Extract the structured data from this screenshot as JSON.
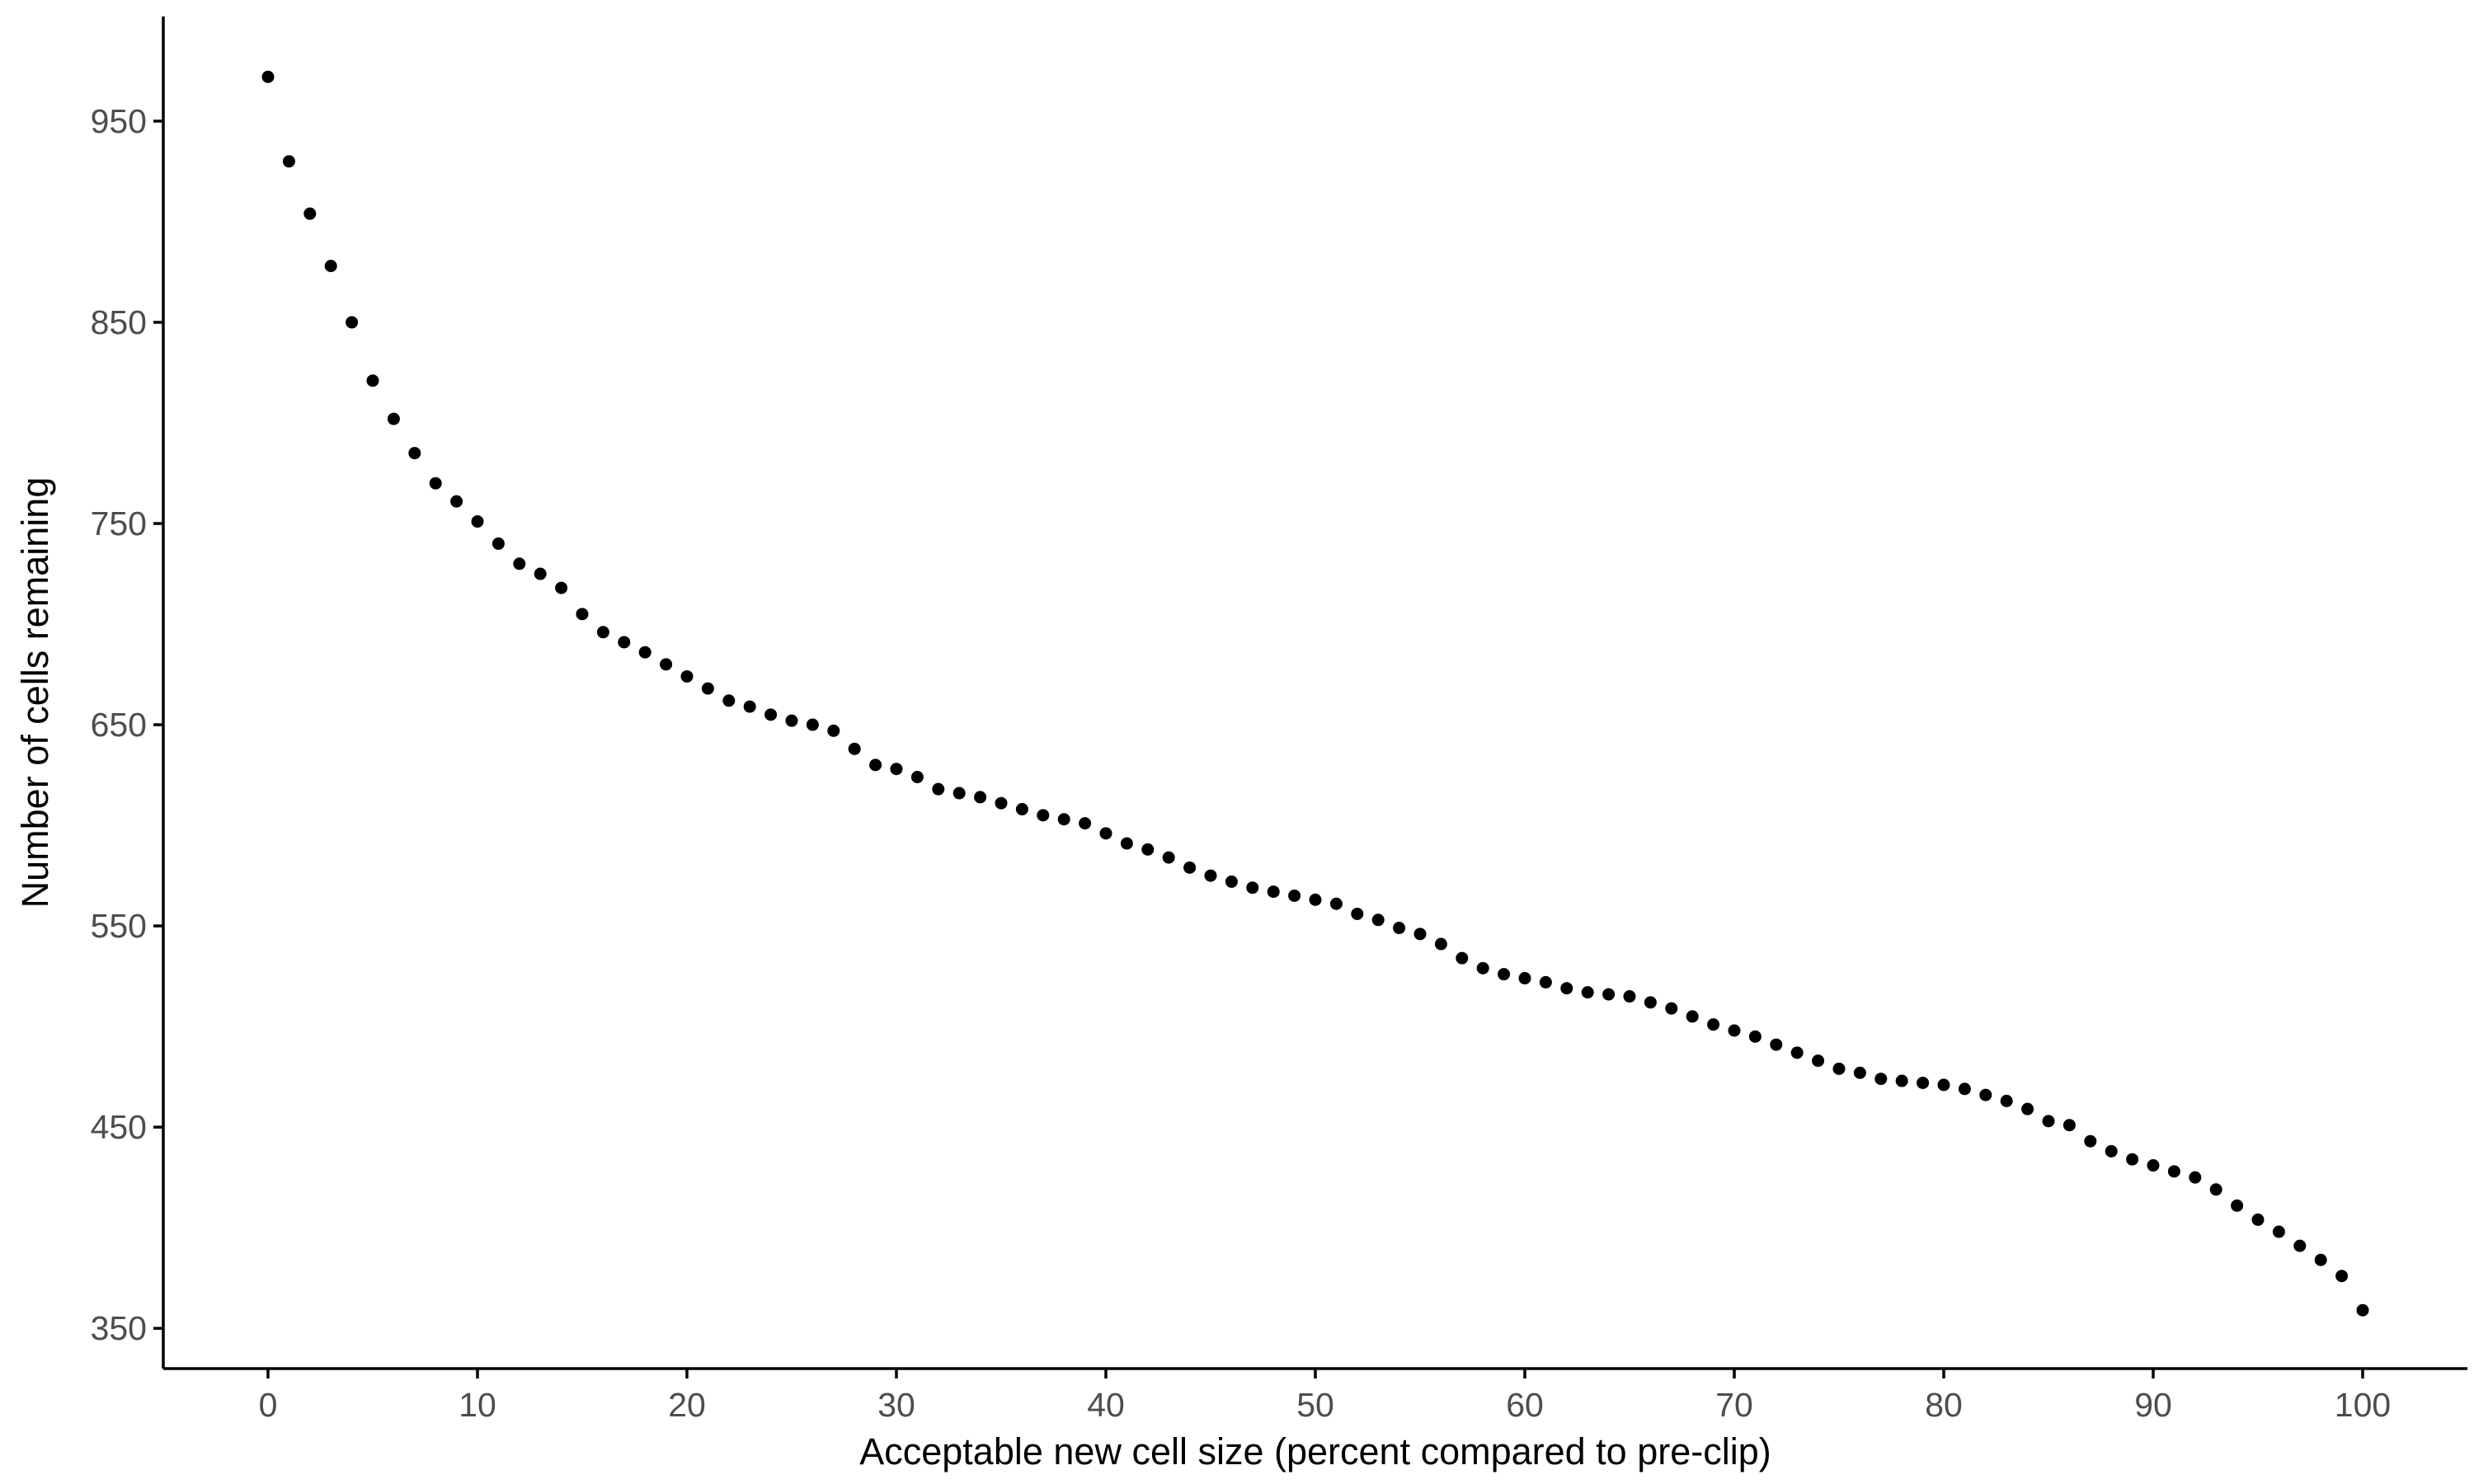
{
  "chart_data": {
    "type": "scatter",
    "xlabel": "Acceptable new cell size (percent compared to pre-clip)",
    "ylabel": "Number of cells remaining",
    "xlim": [
      -5,
      105
    ],
    "ylim": [
      330,
      1002
    ],
    "x_ticks": [
      0,
      10,
      20,
      30,
      40,
      50,
      60,
      70,
      80,
      90,
      100
    ],
    "y_ticks": [
      350,
      450,
      550,
      650,
      750,
      850,
      950
    ],
    "grid": false,
    "point_color": "#000000",
    "series": [
      {
        "x": [
          0,
          1,
          2,
          3,
          4,
          5,
          6,
          7,
          8,
          9,
          10,
          11,
          12,
          13,
          14,
          15,
          16,
          17,
          18,
          19,
          20,
          21,
          22,
          23,
          24,
          25,
          26,
          27,
          28,
          29,
          30,
          31,
          32,
          33,
          34,
          35,
          36,
          37,
          38,
          39,
          40,
          41,
          42,
          43,
          44,
          45,
          46,
          47,
          48,
          49,
          50,
          51,
          52,
          53,
          54,
          55,
          56,
          57,
          58,
          59,
          60,
          61,
          62,
          63,
          64,
          65,
          66,
          67,
          68,
          69,
          70,
          71,
          72,
          73,
          74,
          75,
          76,
          77,
          78,
          79,
          80,
          81,
          82,
          83,
          84,
          85,
          86,
          87,
          88,
          89,
          90,
          91,
          92,
          93,
          94,
          95,
          96,
          97,
          98,
          99,
          100
        ],
        "y": [
          972,
          930,
          904,
          878,
          850,
          821,
          802,
          785,
          770,
          761,
          751,
          740,
          730,
          725,
          718,
          705,
          696,
          691,
          686,
          680,
          674,
          668,
          662,
          659,
          655,
          652,
          650,
          647,
          638,
          630,
          628,
          624,
          618,
          616,
          614,
          611,
          608,
          605,
          603,
          601,
          596,
          591,
          588,
          584,
          579,
          575,
          572,
          569,
          567,
          565,
          563,
          561,
          556,
          553,
          549,
          546,
          541,
          534,
          529,
          526,
          524,
          522,
          519,
          517,
          516,
          515,
          512,
          509,
          505,
          501,
          498,
          495,
          491,
          487,
          483,
          479,
          477,
          474,
          473,
          472,
          471,
          469,
          466,
          463,
          459,
          453,
          451,
          443,
          438,
          434,
          431,
          428,
          425,
          419,
          411,
          404,
          398,
          391,
          384,
          376,
          359
        ]
      }
    ]
  }
}
